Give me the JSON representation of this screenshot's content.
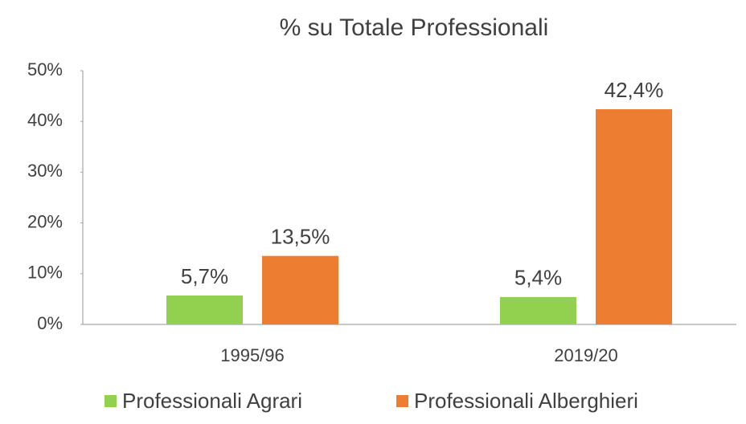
{
  "chart_data": {
    "type": "bar",
    "title": "% su Totale Professionali",
    "categories": [
      "1995/96",
      "2019/20"
    ],
    "series": [
      {
        "name": "Professionali Agrari",
        "color": "#92d050",
        "values": [
          5.7,
          5.4
        ],
        "value_labels": [
          "5,7%",
          "5,4%"
        ]
      },
      {
        "name": "Professionali Alberghieri",
        "color": "#ed7d31",
        "values": [
          13.5,
          42.4
        ],
        "value_labels": [
          "13,5%",
          "42,4%"
        ]
      }
    ],
    "ylim": [
      0,
      50
    ],
    "yticks": [
      {
        "value": 0,
        "label": "0%"
      },
      {
        "value": 10,
        "label": "10%"
      },
      {
        "value": 20,
        "label": "20%"
      },
      {
        "value": 30,
        "label": "30%"
      },
      {
        "value": 40,
        "label": "40%"
      },
      {
        "value": 50,
        "label": "50%"
      }
    ],
    "grid": false,
    "legend": "bottom"
  }
}
